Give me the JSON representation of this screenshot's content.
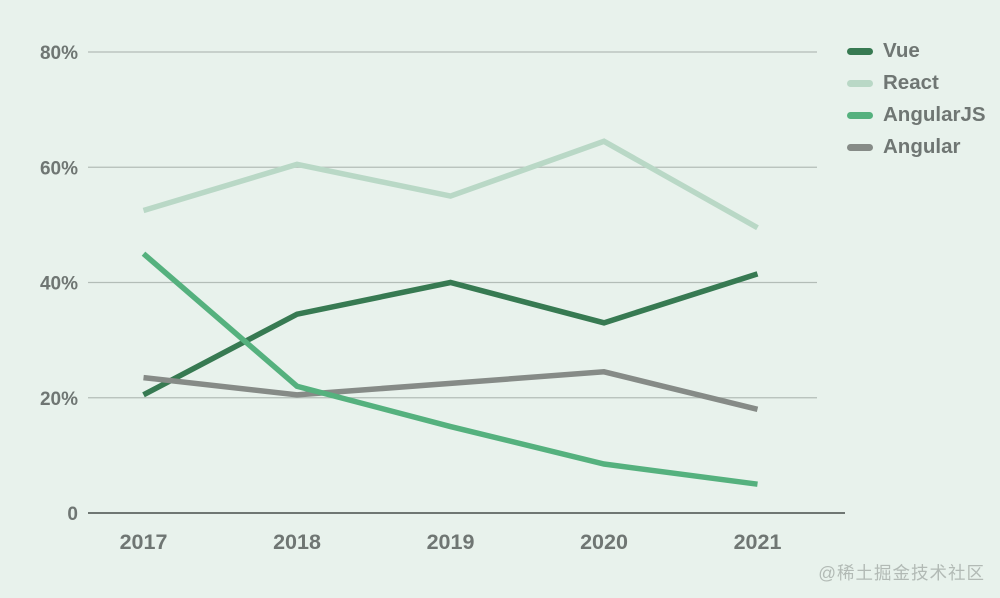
{
  "watermark": "@稀土掘金技术社区",
  "colors": {
    "background": "#e8f2ec",
    "gridline": "#b3bdb7",
    "axis_line": "#6f7773",
    "tick_label": "#6f7673",
    "legend_label": "#6f7673",
    "watermark": "#b2bab5"
  },
  "chart_data": {
    "type": "line",
    "x": [
      "2017",
      "2018",
      "2019",
      "2020",
      "2021"
    ],
    "series": [
      {
        "name": "Vue",
        "color": "#377a52",
        "values": [
          20.5,
          34.5,
          40.0,
          33.0,
          41.5
        ]
      },
      {
        "name": "React",
        "color": "#b9d8c6",
        "values": [
          52.5,
          60.5,
          55.0,
          64.5,
          49.5
        ]
      },
      {
        "name": "AngularJS",
        "color": "#55b17e",
        "values": [
          45.0,
          22.0,
          15.0,
          8.5,
          5.0
        ]
      },
      {
        "name": "Angular",
        "color": "#868b87",
        "values": [
          23.5,
          20.5,
          22.5,
          24.5,
          18.0
        ]
      }
    ],
    "title": "",
    "xlabel": "",
    "ylabel": "",
    "y_ticks": [
      {
        "value": 80,
        "label": "80%"
      },
      {
        "value": 60,
        "label": "60%"
      },
      {
        "value": 40,
        "label": "40%"
      },
      {
        "value": 20,
        "label": "20%"
      },
      {
        "value": 0,
        "label": "0"
      }
    ],
    "ylim": [
      0,
      88
    ],
    "grid": true,
    "legend_position": "right",
    "draw_order": [
      0,
      1,
      3,
      2
    ]
  }
}
